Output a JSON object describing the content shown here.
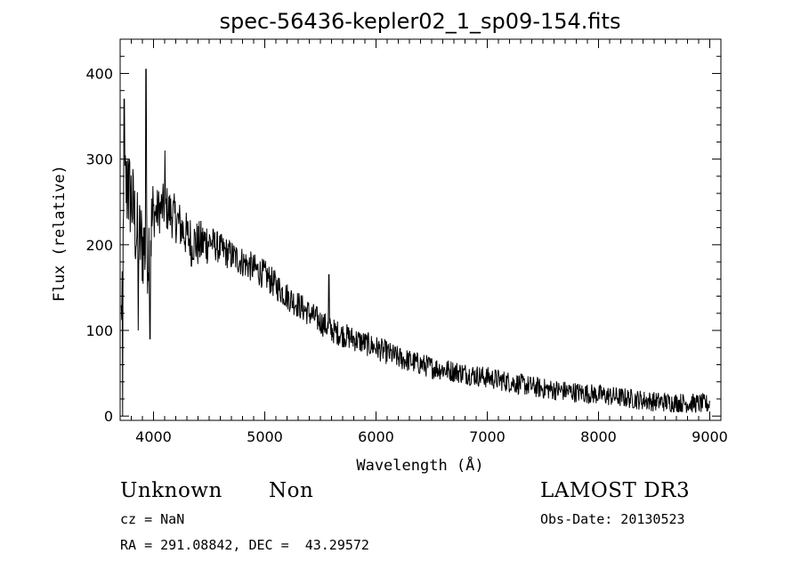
{
  "chart_data": {
    "type": "line",
    "title": "spec-56436-kepler02_1_sp09-154.fits",
    "xlabel": "Wavelength (Å)",
    "ylabel": "Flux (relative)",
    "xlim": [
      3700,
      9100
    ],
    "ylim": [
      -5,
      440
    ],
    "x_ticks": [
      4000,
      5000,
      6000,
      7000,
      8000,
      9000
    ],
    "x_tick_labels": [
      "4000",
      "5000",
      "6000",
      "7000",
      "8000",
      "9000"
    ],
    "y_ticks": [
      0,
      100,
      200,
      300,
      400
    ],
    "y_tick_labels": [
      "0",
      "100",
      "200",
      "300",
      "400"
    ],
    "series": [
      {
        "name": "spectrum",
        "color": "#000000",
        "trend_x": [
          3700,
          3740,
          3800,
          3850,
          3900,
          3950,
          4000,
          4100,
          4200,
          4300,
          4400,
          4500,
          4600,
          4800,
          5000,
          5200,
          5400,
          5600,
          5800,
          6000,
          6200,
          6500,
          7000,
          7500,
          8000,
          8500,
          9000
        ],
        "trend_y": [
          60,
          270,
          255,
          210,
          200,
          195,
          235,
          245,
          230,
          210,
          200,
          205,
          195,
          180,
          165,
          140,
          120,
          100,
          90,
          80,
          68,
          57,
          45,
          32,
          25,
          17,
          14
        ],
        "features": [
          {
            "x": 3722,
            "y": 0
          },
          {
            "x": 3735,
            "y": 370
          },
          {
            "x": 3770,
            "y": 300
          },
          {
            "x": 3862,
            "y": 100
          },
          {
            "x": 3933,
            "y": 405
          },
          {
            "x": 3968,
            "y": 90
          },
          {
            "x": 4102,
            "y": 310
          },
          {
            "x": 4340,
            "y": 175
          },
          {
            "x": 5577,
            "y": 165
          }
        ]
      }
    ]
  },
  "info": {
    "object_class": "Unknown",
    "object_subclass": "Non",
    "survey": "LAMOST DR3",
    "cz_line": "cz = NaN",
    "obs_date_line": "Obs-Date: 20130523",
    "coords_line": "RA = 291.08842, DEC =  43.29572"
  }
}
